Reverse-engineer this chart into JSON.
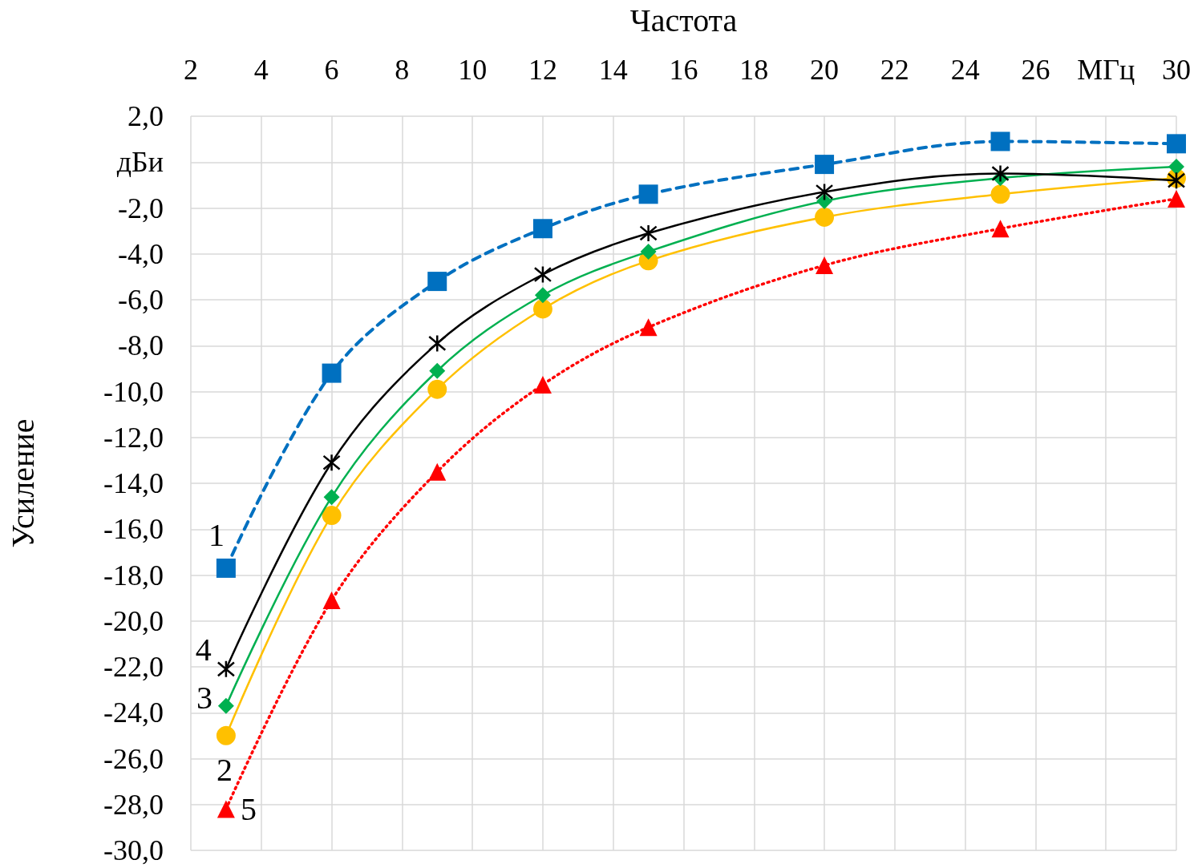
{
  "chart_data": {
    "type": "line",
    "xlabel": "Частота",
    "ylabel": "Усиление",
    "xlim": [
      2,
      30
    ],
    "xticks": [
      2,
      4,
      6,
      8,
      10,
      12,
      14,
      16,
      18,
      20,
      22,
      24,
      26,
      {
        "value": 28,
        "label": "МГц"
      },
      30
    ],
    "ylim": [
      -30,
      2
    ],
    "yticks": [
      {
        "value": 2,
        "label": "2,0"
      },
      {
        "value": 0,
        "label": "дБи"
      },
      {
        "value": -2,
        "label": "-2,0"
      },
      {
        "value": -4,
        "label": "-4,0"
      },
      {
        "value": -6,
        "label": "-6,0"
      },
      {
        "value": -8,
        "label": "-8,0"
      },
      {
        "value": -10,
        "label": "-10,0"
      },
      {
        "value": -12,
        "label": "-12,0"
      },
      {
        "value": -14,
        "label": "-14,0"
      },
      {
        "value": -16,
        "label": "-16,0"
      },
      {
        "value": -18,
        "label": "-18,0"
      },
      {
        "value": -20,
        "label": "-20,0"
      },
      {
        "value": -22,
        "label": "-22,0"
      },
      {
        "value": -24,
        "label": "-24,0"
      },
      {
        "value": -26,
        "label": "-26,0"
      },
      {
        "value": -28,
        "label": "-28,0"
      },
      {
        "value": -30,
        "label": "-30,0"
      }
    ],
    "x": [
      3,
      6,
      9,
      12,
      15,
      20,
      25,
      30
    ],
    "grid": true,
    "series": [
      {
        "name": "1",
        "color": "#0070c0",
        "marker": "square",
        "line_style": "dashed",
        "values": [
          -17.7,
          -9.2,
          -5.2,
          -2.9,
          -1.4,
          -0.1,
          0.9,
          0.8
        ]
      },
      {
        "name": "2",
        "color": "#ffc000",
        "marker": "circle",
        "line_style": "solid",
        "values": [
          -25.0,
          -15.4,
          -9.9,
          -6.4,
          -4.3,
          -2.4,
          -1.4,
          -0.7
        ]
      },
      {
        "name": "3",
        "color": "#00b050",
        "marker": "diamond",
        "line_style": "solid",
        "values": [
          -23.7,
          -14.6,
          -9.1,
          -5.8,
          -3.9,
          -1.7,
          -0.7,
          -0.2
        ]
      },
      {
        "name": "4",
        "color": "#000000",
        "marker": "cross",
        "line_style": "solid",
        "values": [
          -22.1,
          -13.1,
          -7.9,
          -4.9,
          -3.1,
          -1.3,
          -0.5,
          -0.8
        ]
      },
      {
        "name": "5",
        "color": "#ff0000",
        "marker": "triangle",
        "line_style": "dotted",
        "values": [
          -28.2,
          -19.1,
          -13.5,
          -9.7,
          -7.2,
          -4.5,
          -2.9,
          -1.6
        ]
      }
    ]
  }
}
